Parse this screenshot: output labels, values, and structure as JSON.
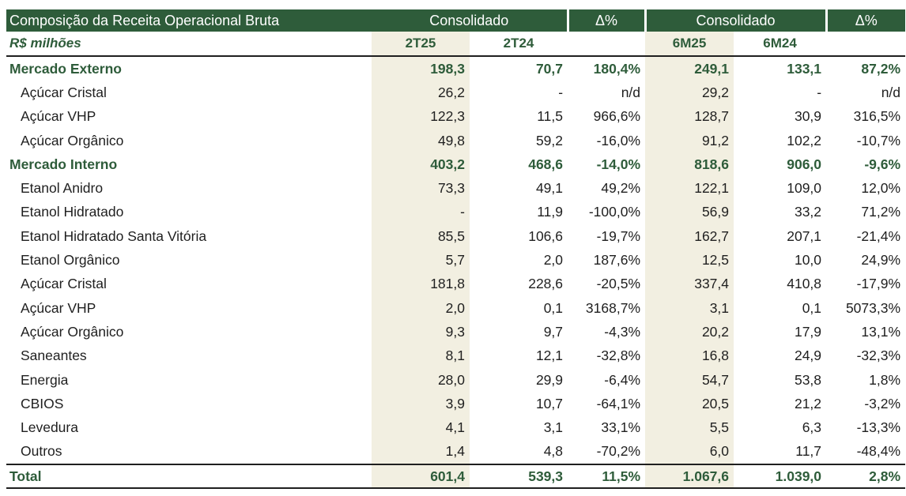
{
  "table": {
    "title": "Composição da Receita Operacional Bruta",
    "unit": "R$ milhões",
    "group1": "Consolidado",
    "delta1": "Δ%",
    "group2": "Consolidado",
    "delta2": "Δ%",
    "col_2t25": "2T25",
    "col_2t24": "2T24",
    "col_6m25": "6M25",
    "col_6m24": "6M24",
    "rows": [
      {
        "label": "Mercado Externo",
        "v": [
          "198,3",
          "70,7",
          "180,4%",
          "249,1",
          "133,1",
          "87,2%"
        ]
      },
      {
        "label": "Açúcar Cristal",
        "v": [
          "26,2",
          "-",
          "n/d",
          "29,2",
          "-",
          "n/d"
        ]
      },
      {
        "label": "Açúcar VHP",
        "v": [
          "122,3",
          "11,5",
          "966,6%",
          "128,7",
          "30,9",
          "316,5%"
        ]
      },
      {
        "label": "Açúcar Orgânico",
        "v": [
          "49,8",
          "59,2",
          "-16,0%",
          "91,2",
          "102,2",
          "-10,7%"
        ]
      },
      {
        "label": "Mercado Interno",
        "v": [
          "403,2",
          "468,6",
          "-14,0%",
          "818,6",
          "906,0",
          "-9,6%"
        ]
      },
      {
        "label": "Etanol Anidro",
        "v": [
          "73,3",
          "49,1",
          "49,2%",
          "122,1",
          "109,0",
          "12,0%"
        ]
      },
      {
        "label": "Etanol Hidratado",
        "v": [
          "-",
          "11,9",
          "-100,0%",
          "56,9",
          "33,2",
          "71,2%"
        ]
      },
      {
        "label": "Etanol Hidratado Santa Vitória",
        "v": [
          "85,5",
          "106,6",
          "-19,7%",
          "162,7",
          "207,1",
          "-21,4%"
        ]
      },
      {
        "label": "Etanol Orgânico",
        "v": [
          "5,7",
          "2,0",
          "187,6%",
          "12,5",
          "10,0",
          "24,9%"
        ]
      },
      {
        "label": "Açúcar Cristal",
        "v": [
          "181,8",
          "228,6",
          "-20,5%",
          "337,4",
          "410,8",
          "-17,9%"
        ]
      },
      {
        "label": "Açúcar VHP",
        "v": [
          "2,0",
          "0,1",
          "3168,7%",
          "3,1",
          "0,1",
          "5073,3%"
        ]
      },
      {
        "label": "Açúcar Orgânico",
        "v": [
          "9,3",
          "9,7",
          "-4,3%",
          "20,2",
          "17,9",
          "13,1%"
        ]
      },
      {
        "label": "Saneantes",
        "v": [
          "8,1",
          "12,1",
          "-32,8%",
          "16,8",
          "24,9",
          "-32,3%"
        ]
      },
      {
        "label": "Energia",
        "v": [
          "28,0",
          "29,9",
          "-6,4%",
          "54,7",
          "53,8",
          "1,8%"
        ]
      },
      {
        "label": "CBIOS",
        "v": [
          "3,9",
          "10,7",
          "-64,1%",
          "20,5",
          "21,2",
          "-3,2%"
        ]
      },
      {
        "label": "Levedura",
        "v": [
          "4,1",
          "3,1",
          "33,1%",
          "5,5",
          "6,3",
          "-13,3%"
        ]
      },
      {
        "label": "Outros",
        "v": [
          "1,4",
          "4,8",
          "-70,2%",
          "6,0",
          "11,7",
          "-48,4%"
        ]
      }
    ],
    "total": {
      "label": "Total",
      "v": [
        "601,4",
        "539,3",
        "11,5%",
        "1.067,6",
        "1.039,0",
        "2,8%"
      ]
    }
  }
}
